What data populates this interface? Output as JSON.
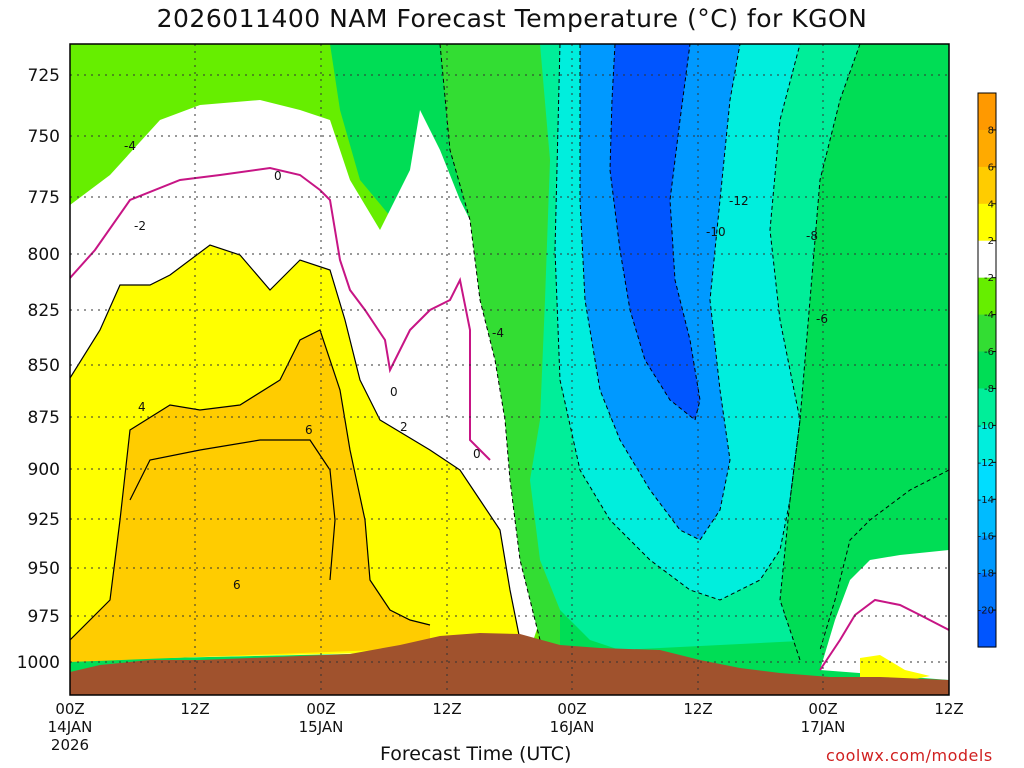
{
  "chart_data": {
    "type": "heatmap",
    "title": "2026011400 NAM Forecast Temperature (°C) for KGON",
    "xlabel": "Forecast Time (UTC)",
    "ylabel": "",
    "credit": "coolwx.com/models",
    "y_ticks": [
      "725",
      "750",
      "775",
      "800",
      "825",
      "850",
      "875",
      "900",
      "925",
      "950",
      "975",
      "1000"
    ],
    "x_ticks": [
      {
        "time": "00Z",
        "date": "14JAN",
        "year": "2026"
      },
      {
        "time": "12Z",
        "date": "",
        "year": ""
      },
      {
        "time": "00Z",
        "date": "15JAN",
        "year": ""
      },
      {
        "time": "12Z",
        "date": "",
        "year": ""
      },
      {
        "time": "00Z",
        "date": "16JAN",
        "year": ""
      },
      {
        "time": "12Z",
        "date": "",
        "year": ""
      },
      {
        "time": "00Z",
        "date": "17JAN",
        "year": ""
      },
      {
        "time": "12Z",
        "date": "",
        "year": ""
      }
    ],
    "xlim_hours": [
      0,
      84
    ],
    "ylim_hPa": [
      1015,
      712
    ],
    "colorbar": {
      "labels": [
        "8",
        "6",
        "4",
        "2",
        "-2",
        "-4",
        "-6",
        "-8",
        "-10",
        "-12",
        "-14",
        "-16",
        "-18",
        "-20"
      ],
      "bands": [
        {
          "range": "8 to 10",
          "color": "#ff9900"
        },
        {
          "range": "6 to 8",
          "color": "#ffaa00"
        },
        {
          "range": "4 to 6",
          "color": "#ffcc00"
        },
        {
          "range": "2 to 4",
          "color": "#ffff00"
        },
        {
          "range": "-2 to 2",
          "color": "#ffffff"
        },
        {
          "range": "-4 to -2",
          "color": "#66ee00"
        },
        {
          "range": "-6 to -4",
          "color": "#33dd33"
        },
        {
          "range": "-8 to -6",
          "color": "#00dd55"
        },
        {
          "range": "-10 to -8",
          "color": "#00ee99"
        },
        {
          "range": "-12 to -10",
          "color": "#00eedd"
        },
        {
          "range": "-14 to -12",
          "color": "#00ddff"
        },
        {
          "range": "-16 to -14",
          "color": "#00bbff"
        },
        {
          "range": "-18 to -16",
          "color": "#0099ff"
        },
        {
          "range": "-20 to -18",
          "color": "#0077ff"
        },
        {
          "range": "-22 to -20",
          "color": "#0055ff"
        }
      ]
    },
    "regions": [
      {
        "name": "upper-green-left",
        "value_range": "-4 to -2",
        "color": "#66ee00"
      },
      {
        "name": "white-band",
        "value_range": "-2 to 2",
        "color": "#ffffff"
      },
      {
        "name": "yellow-region",
        "value_range": "2 to 4",
        "color": "#ffff00"
      },
      {
        "name": "orange-core",
        "value_range": "4 to 8",
        "color": "#ffcc00"
      },
      {
        "name": "green-slope",
        "value_range": "-6 to -2",
        "color": "#33dd33"
      },
      {
        "name": "teal-zone",
        "value_range": "-10 to -8",
        "color": "#00ee99"
      },
      {
        "name": "cyan-zone",
        "value_range": "-14 to -10",
        "color": "#00eedd"
      },
      {
        "name": "blue-zone",
        "value_range": "-18 to -14",
        "color": "#0099ff"
      },
      {
        "name": "cold-core",
        "value_range": "-22 to -18",
        "color": "#0055ff"
      },
      {
        "name": "green-right",
        "value_range": "-8 to -4",
        "color": "#00dd55"
      },
      {
        "name": "white-right-low",
        "value_range": "-2 to 2",
        "color": "#ffffff"
      },
      {
        "name": "yellow-right-low",
        "value_range": "2 to 4",
        "color": "#ffff00"
      },
      {
        "name": "terrain",
        "value_range": "below ground",
        "color": "#a0522d"
      }
    ],
    "contour_labels": [
      "-4",
      "-2",
      "0",
      "4",
      "6",
      "2",
      "0",
      "0",
      "6",
      "-4",
      "-12",
      "-10",
      "-8",
      "-6"
    ]
  }
}
